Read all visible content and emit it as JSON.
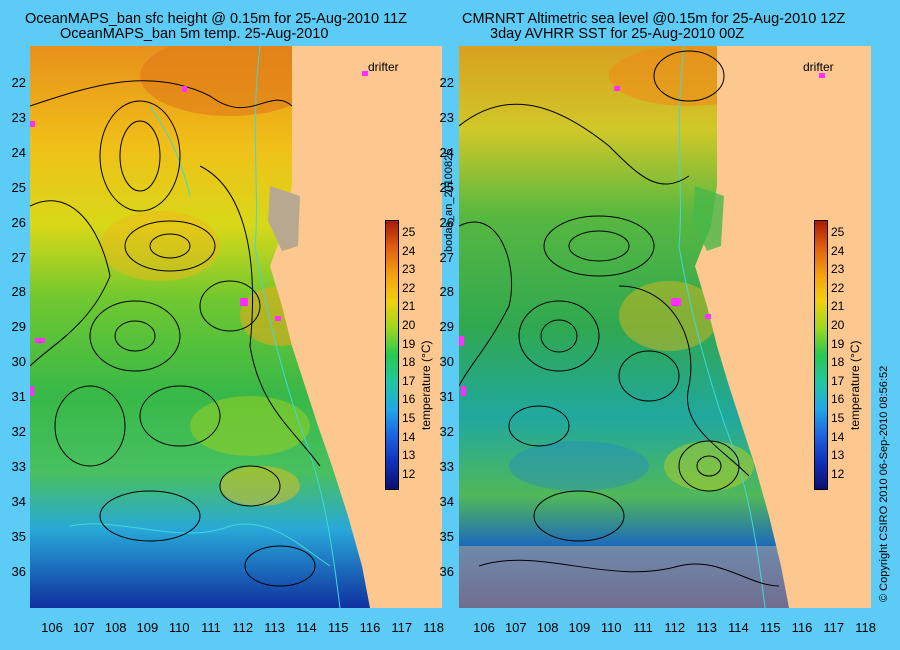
{
  "left_panel": {
    "title_line1": "OceanMAPS_ban sfc height @ 0.15m for 25-Aug-2010 11Z",
    "title_line2": "OceanMAPS_ban 5m temp. 25-Aug-2010"
  },
  "right_panel": {
    "title_line1": "CMRNRT Altimetric sea level  @0.15m  for 25-Aug-2010 12Z",
    "title_line2": "3day AVHRR SST for 25-Aug-2010 00Z"
  },
  "drifter_label": "drifter",
  "side_label_left": "bodas_an_20100825",
  "side_label_right": "© Copyright CSIRO 2010   06-Sep-2010 08:56:52",
  "colorbar": {
    "title": "temperature (°C)",
    "ticks": [
      "25",
      "24",
      "23",
      "22",
      "21",
      "20",
      "19",
      "18",
      "17",
      "16",
      "15",
      "14",
      "13",
      "12"
    ]
  },
  "y_axis": [
    "22",
    "23",
    "24",
    "25",
    "26",
    "27",
    "28",
    "29",
    "30",
    "31",
    "32",
    "33",
    "34",
    "35",
    "36"
  ],
  "x_axis": [
    "106",
    "107",
    "108",
    "109",
    "110",
    "111",
    "112",
    "113",
    "114",
    "115",
    "116",
    "117",
    "118"
  ],
  "colors": {
    "background": "#5ccbf6",
    "land": "#fcc890",
    "contour": "#000000",
    "isobath": "#40d8d8",
    "drifter": "#ff30ff"
  }
}
